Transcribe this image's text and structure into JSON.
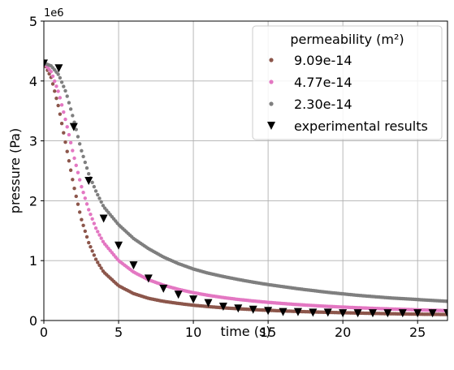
{
  "chart_data": {
    "type": "scatter",
    "title": "",
    "xlabel": "time (s)",
    "ylabel": "pressure (Pa)",
    "y_scale_note": "1e6",
    "xlim": [
      0,
      27
    ],
    "ylim": [
      0,
      5000000
    ],
    "xticks": [
      "0",
      "5",
      "10",
      "15",
      "20",
      "25"
    ],
    "yticks": [
      "0",
      "1",
      "2",
      "3",
      "4",
      "5"
    ],
    "grid": true,
    "legend_title": "permeability (m²)",
    "legend_position": "top-right",
    "series": [
      {
        "name": "9.09e-14",
        "color": "#8c564b",
        "marker": "dot",
        "x": [
          0.0,
          0.5,
          1.0,
          1.5,
          2.0,
          2.5,
          3.0,
          3.5,
          4.0,
          5.0,
          6.0,
          7.0,
          8.0,
          9.0,
          10.0,
          11.0,
          12.0,
          13.0,
          14.0,
          15.0,
          16.0,
          17.0,
          18.0,
          19.0,
          20.0,
          21.0,
          22.0,
          23.0,
          24.0,
          25.0,
          26.0,
          27.0
        ],
        "y": [
          4300000,
          4050000,
          3550000,
          2900000,
          2250000,
          1700000,
          1300000,
          1010000,
          810000,
          580000,
          450000,
          370000,
          320000,
          285000,
          255000,
          232000,
          212000,
          196000,
          182000,
          170000,
          160000,
          151000,
          143000,
          136000,
          130000,
          124000,
          119000,
          114000,
          110000,
          106000,
          103000,
          100000
        ]
      },
      {
        "name": "4.77e-14",
        "color": "#e377c2",
        "marker": "dot",
        "x": [
          0.0,
          0.5,
          1.0,
          1.5,
          2.0,
          2.5,
          3.0,
          3.5,
          4.0,
          5.0,
          6.0,
          7.0,
          8.0,
          9.0,
          10.0,
          11.0,
          12.0,
          13.0,
          14.0,
          15.0,
          16.0,
          17.0,
          18.0,
          19.0,
          20.0,
          21.0,
          22.0,
          23.0,
          24.0,
          25.0,
          26.0,
          27.0
        ],
        "y": [
          4300000,
          4150000,
          3800000,
          3300000,
          2750000,
          2250000,
          1850000,
          1530000,
          1300000,
          1000000,
          810000,
          680000,
          590000,
          520000,
          465000,
          420000,
          383000,
          352000,
          326000,
          303000,
          283000,
          265000,
          250000,
          236000,
          224000,
          213000,
          203000,
          194000,
          186000,
          178000,
          171000,
          165000
        ]
      },
      {
        "name": "2.30e-14",
        "color": "#7f7f7f",
        "marker": "dot",
        "x": [
          0.0,
          0.5,
          1.0,
          1.5,
          2.0,
          2.5,
          3.0,
          3.5,
          4.0,
          5.0,
          6.0,
          7.0,
          8.0,
          9.0,
          10.0,
          11.0,
          12.0,
          13.0,
          14.0,
          15.0,
          16.0,
          17.0,
          18.0,
          19.0,
          20.0,
          21.0,
          22.0,
          23.0,
          24.0,
          25.0,
          26.0,
          27.0
        ],
        "y": [
          4300000,
          4250000,
          4100000,
          3800000,
          3350000,
          2850000,
          2450000,
          2150000,
          1900000,
          1600000,
          1370000,
          1200000,
          1060000,
          950000,
          860000,
          790000,
          735000,
          685000,
          640000,
          600000,
          565000,
          530000,
          500000,
          470000,
          445000,
          420000,
          400000,
          380000,
          365000,
          350000,
          335000,
          320000
        ]
      },
      {
        "name": "experimental results",
        "color": "#000000",
        "marker": "triangle-down",
        "x": [
          0,
          1,
          2,
          3,
          4,
          5,
          6,
          7,
          8,
          9,
          10,
          11,
          12,
          13,
          14,
          15,
          16,
          17,
          18,
          19,
          20,
          21,
          22,
          23,
          24,
          25,
          26,
          27
        ],
        "y": [
          4290000,
          4210000,
          3230000,
          2330000,
          1700000,
          1250000,
          920000,
          700000,
          530000,
          430000,
          350000,
          290000,
          230000,
          200000,
          180000,
          160000,
          140000,
          140000,
          130000,
          130000,
          120000,
          120000,
          120000,
          120000,
          120000,
          120000,
          120000,
          120000
        ]
      }
    ]
  }
}
